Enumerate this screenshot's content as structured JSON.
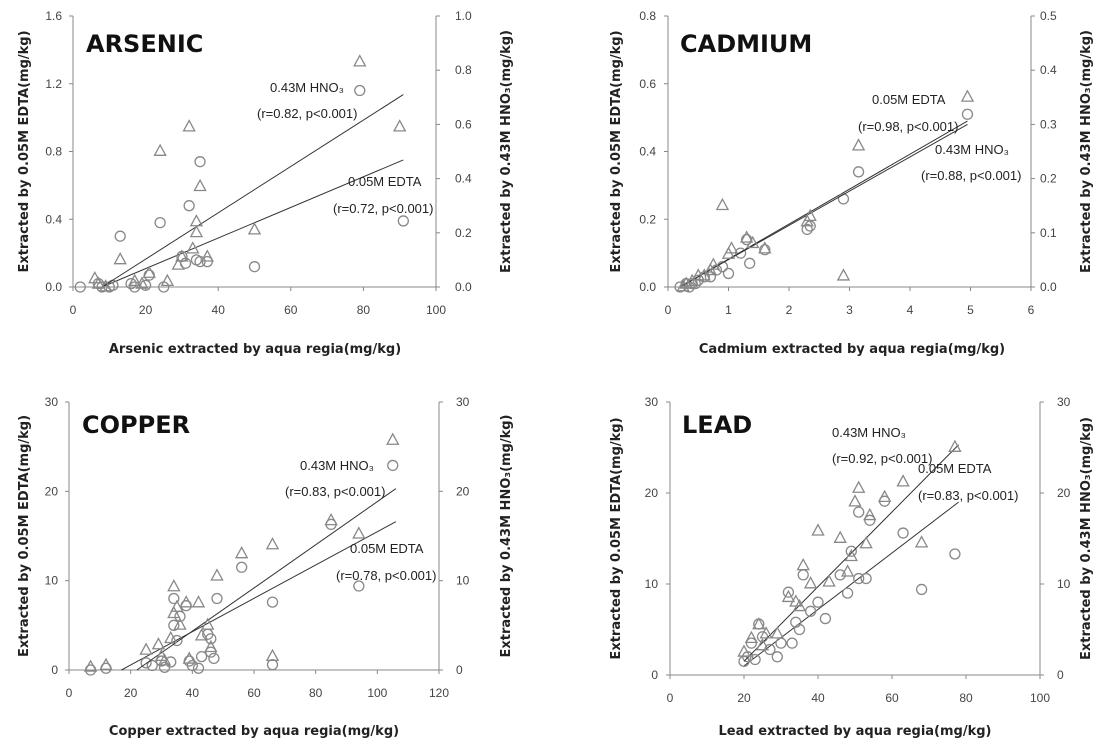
{
  "axis_labels": {
    "y_left": "Extracted by 0.05M EDTA(mg/kg)",
    "y_right": "Extracted by 0.43M HNO₃(mg/kg)"
  },
  "legend_markers": {
    "circle": "0.05M EDTA",
    "triangle": "0.43M HNO₃"
  },
  "colors": {
    "marker": "#888888",
    "line": "#333333",
    "axis": "#888888"
  },
  "chart_data": [
    {
      "type": "scatter",
      "title": "ARSENIC",
      "xlabel": "Arsenic extracted by aqua regia(mg/kg)",
      "xlim": [
        0,
        100
      ],
      "xticks": [
        0,
        20,
        40,
        60,
        80,
        100
      ],
      "ylim_left": [
        0,
        1.6
      ],
      "yticks_left": [
        "0.0",
        "0.4",
        "0.8",
        "1.2",
        "1.6"
      ],
      "ylim_right": [
        0,
        1.0
      ],
      "yticks_right": [
        "0.0",
        "0.2",
        "0.4",
        "0.6",
        "0.8",
        "1.0"
      ],
      "series": [
        {
          "name": "0.05M EDTA",
          "marker": "circle",
          "axis": "left",
          "points": [
            [
              2,
              0.0
            ],
            [
              7,
              0.02
            ],
            [
              8,
              0.0
            ],
            [
              10,
              0.0
            ],
            [
              11,
              0.01
            ],
            [
              13,
              0.3
            ],
            [
              16,
              0.02
            ],
            [
              17,
              0.0
            ],
            [
              20,
              0.01
            ],
            [
              21,
              0.07
            ],
            [
              24,
              0.38
            ],
            [
              25,
              0.0
            ],
            [
              30,
              0.18
            ],
            [
              31,
              0.14
            ],
            [
              32,
              0.48
            ],
            [
              34,
              0.16
            ],
            [
              35,
              0.74
            ],
            [
              35,
              0.15
            ],
            [
              37,
              0.15
            ],
            [
              50,
              0.12
            ],
            [
              79,
              1.16
            ],
            [
              91,
              0.39
            ]
          ],
          "fit": {
            "x": [
              8,
              91
            ],
            "y": [
              0.0,
              0.75
            ]
          }
        },
        {
          "name": "0.43M HNO₃",
          "marker": "triangle",
          "axis": "right",
          "points": [
            [
              6,
              0.03
            ],
            [
              7,
              0.01
            ],
            [
              9,
              0.0
            ],
            [
              13,
              0.1
            ],
            [
              17,
              0.02
            ],
            [
              19,
              0.01
            ],
            [
              21,
              0.05
            ],
            [
              24,
              0.5
            ],
            [
              26,
              0.02
            ],
            [
              29,
              0.08
            ],
            [
              30,
              0.11
            ],
            [
              32,
              0.59
            ],
            [
              33,
              0.14
            ],
            [
              34,
              0.24
            ],
            [
              34,
              0.2
            ],
            [
              35,
              0.37
            ],
            [
              37,
              0.11
            ],
            [
              50,
              0.21
            ],
            [
              79,
              0.83
            ],
            [
              90,
              0.59
            ]
          ],
          "fit": {
            "x": [
              8,
              91
            ],
            "y": [
              0.0,
              0.71
            ]
          }
        }
      ],
      "annotations": [
        {
          "text": "0.43M HNO₃",
          "anchor": "start"
        },
        {
          "text": "(r=0.82, p<0.001)",
          "anchor": "start"
        },
        {
          "text": "0.05M EDTA",
          "anchor": "start"
        },
        {
          "text": "(r=0.72, p<0.001)",
          "anchor": "start"
        }
      ]
    },
    {
      "type": "scatter",
      "title": "CADMIUM",
      "xlabel": "Cadmium extracted by aqua regia(mg/kg)",
      "xlim": [
        0,
        6
      ],
      "xticks": [
        0,
        1,
        2,
        3,
        4,
        5,
        6
      ],
      "ylim_left": [
        0,
        0.8
      ],
      "yticks_left": [
        "0.0",
        "0.2",
        "0.4",
        "0.6",
        "0.8"
      ],
      "ylim_right": [
        0,
        0.5
      ],
      "yticks_right": [
        "0.0",
        "0.1",
        "0.2",
        "0.3",
        "0.4",
        "0.5"
      ],
      "series": [
        {
          "name": "0.05M EDTA",
          "marker": "circle",
          "axis": "left",
          "points": [
            [
              0.2,
              0.0
            ],
            [
              0.3,
              0.01
            ],
            [
              0.35,
              0.0
            ],
            [
              0.4,
              0.01
            ],
            [
              0.45,
              0.01
            ],
            [
              0.5,
              0.02
            ],
            [
              0.6,
              0.03
            ],
            [
              0.7,
              0.03
            ],
            [
              0.8,
              0.05
            ],
            [
              0.9,
              0.06
            ],
            [
              1.0,
              0.04
            ],
            [
              1.2,
              0.1
            ],
            [
              1.3,
              0.14
            ],
            [
              1.35,
              0.07
            ],
            [
              1.6,
              0.11
            ],
            [
              2.3,
              0.17
            ],
            [
              2.35,
              0.18
            ],
            [
              2.9,
              0.26
            ],
            [
              3.15,
              0.34
            ],
            [
              4.95,
              0.51
            ]
          ],
          "fit": {
            "x": [
              0.2,
              4.95
            ],
            "y": [
              0.0,
              0.49
            ]
          }
        },
        {
          "name": "0.43M HNO₃",
          "marker": "triangle",
          "axis": "right",
          "points": [
            [
              0.25,
              0.0
            ],
            [
              0.3,
              0.005
            ],
            [
              0.4,
              0.01
            ],
            [
              0.5,
              0.02
            ],
            [
              0.6,
              0.02
            ],
            [
              0.7,
              0.03
            ],
            [
              0.75,
              0.04
            ],
            [
              0.9,
              0.15
            ],
            [
              1.0,
              0.06
            ],
            [
              1.05,
              0.07
            ],
            [
              1.3,
              0.09
            ],
            [
              1.4,
              0.08
            ],
            [
              1.6,
              0.07
            ],
            [
              2.3,
              0.12
            ],
            [
              2.35,
              0.13
            ],
            [
              2.9,
              0.02
            ],
            [
              3.15,
              0.26
            ],
            [
              4.95,
              0.35
            ]
          ],
          "fit": {
            "x": [
              0.2,
              4.95
            ],
            "y": [
              0.0,
              0.3
            ]
          }
        }
      ],
      "annotations": [
        {
          "text": "0.05M EDTA",
          "anchor": "start"
        },
        {
          "text": "(r=0.98, p<0.001)",
          "anchor": "start"
        },
        {
          "text": "0.43M HNO₃",
          "anchor": "start"
        },
        {
          "text": "(r=0.88, p<0.001)",
          "anchor": "start"
        }
      ]
    },
    {
      "type": "scatter",
      "title": "COPPER",
      "xlabel": "Copper extracted by aqua regia(mg/kg)",
      "xlim": [
        0,
        120
      ],
      "xticks": [
        0,
        20,
        40,
        60,
        80,
        100,
        120
      ],
      "ylim_left": [
        0,
        30
      ],
      "yticks_left": [
        "0",
        "10",
        "20",
        "30"
      ],
      "ylim_right": [
        0,
        30
      ],
      "yticks_right": [
        "0",
        "10",
        "20",
        "30"
      ],
      "series": [
        {
          "name": "0.05M EDTA",
          "marker": "circle",
          "axis": "left",
          "points": [
            [
              7,
              0.0
            ],
            [
              12,
              0.2
            ],
            [
              25,
              0.8
            ],
            [
              27,
              0.5
            ],
            [
              30,
              1.0
            ],
            [
              31,
              0.3
            ],
            [
              33,
              0.9
            ],
            [
              34,
              8.0
            ],
            [
              34,
              5.0
            ],
            [
              35,
              3.3
            ],
            [
              36,
              6.0
            ],
            [
              38,
              7.2
            ],
            [
              39,
              1.0
            ],
            [
              40,
              0.5
            ],
            [
              42,
              0.2
            ],
            [
              43,
              1.5
            ],
            [
              45,
              4.0
            ],
            [
              46,
              3.5
            ],
            [
              46,
              2.0
            ],
            [
              47,
              1.3
            ],
            [
              48,
              8.0
            ],
            [
              56,
              11.5
            ],
            [
              66,
              7.6
            ],
            [
              66,
              0.6
            ],
            [
              85,
              16.3
            ],
            [
              94,
              9.4
            ],
            [
              105,
              22.9
            ]
          ],
          "fit": {
            "x": [
              17,
              106
            ],
            "y": [
              0.0,
              16.6
            ]
          }
        },
        {
          "name": "0.43M HNO₃",
          "marker": "triangle",
          "axis": "right",
          "points": [
            [
              7,
              0.3
            ],
            [
              12,
              0.5
            ],
            [
              25,
              2.2
            ],
            [
              29,
              2.8
            ],
            [
              30,
              1.5
            ],
            [
              31,
              1.0
            ],
            [
              33,
              3.5
            ],
            [
              34,
              9.3
            ],
            [
              34,
              6.3
            ],
            [
              35,
              7.0
            ],
            [
              36,
              5.0
            ],
            [
              38,
              7.5
            ],
            [
              39,
              1.2
            ],
            [
              42,
              7.5
            ],
            [
              43,
              3.8
            ],
            [
              45,
              5.0
            ],
            [
              46,
              2.5
            ],
            [
              48,
              10.5
            ],
            [
              56,
              13.0
            ],
            [
              66,
              14.0
            ],
            [
              66,
              1.5
            ],
            [
              85,
              16.7
            ],
            [
              94,
              15.2
            ],
            [
              105,
              25.7
            ]
          ],
          "fit": {
            "x": [
              22,
              106
            ],
            "y": [
              0.0,
              20.3
            ]
          }
        }
      ],
      "annotations": [
        {
          "text": "0.43M HNO₃",
          "anchor": "start"
        },
        {
          "text": "(r=0.83, p<0.001)",
          "anchor": "start"
        },
        {
          "text": "0.05M EDTA",
          "anchor": "start"
        },
        {
          "text": "(r=0.78, p<0.001)",
          "anchor": "start"
        }
      ]
    },
    {
      "type": "scatter",
      "title": "LEAD",
      "xlabel": "Lead extracted by aqua regia(mg/kg)",
      "xlim": [
        0,
        100
      ],
      "xticks": [
        0,
        20,
        40,
        60,
        80,
        100
      ],
      "ylim_left": [
        0,
        30
      ],
      "yticks_left": [
        "0",
        "10",
        "20",
        "30"
      ],
      "ylim_right": [
        0,
        30
      ],
      "yticks_right": [
        "0",
        "10",
        "20",
        "30"
      ],
      "series": [
        {
          "name": "0.05M EDTA",
          "marker": "circle",
          "axis": "left",
          "points": [
            [
              20,
              1.5
            ],
            [
              21,
              2.0
            ],
            [
              22,
              3.5
            ],
            [
              23,
              1.7
            ],
            [
              24,
              5.6
            ],
            [
              25,
              4.2
            ],
            [
              27,
              2.8
            ],
            [
              29,
              2.0
            ],
            [
              30,
              3.5
            ],
            [
              32,
              9.1
            ],
            [
              33,
              3.5
            ],
            [
              34,
              5.8
            ],
            [
              35,
              5.0
            ],
            [
              36,
              11.0
            ],
            [
              38,
              7.0
            ],
            [
              40,
              8.0
            ],
            [
              42,
              6.2
            ],
            [
              46,
              11.0
            ],
            [
              48,
              9.0
            ],
            [
              49,
              13.6
            ],
            [
              51,
              10.6
            ],
            [
              51,
              17.9
            ],
            [
              53,
              10.6
            ],
            [
              54,
              17.0
            ],
            [
              58,
              19.1
            ],
            [
              63,
              15.6
            ],
            [
              68,
              9.4
            ],
            [
              77,
              13.3
            ]
          ],
          "fit": {
            "x": [
              20,
              78
            ],
            "y": [
              1.0,
              19.0
            ]
          }
        },
        {
          "name": "0.43M HNO₃",
          "marker": "triangle",
          "axis": "right",
          "points": [
            [
              20,
              2.5
            ],
            [
              22,
              4.0
            ],
            [
              24,
              5.5
            ],
            [
              25,
              3.2
            ],
            [
              26,
              4.5
            ],
            [
              29,
              4.5
            ],
            [
              32,
              8.5
            ],
            [
              34,
              8.0
            ],
            [
              35,
              7.5
            ],
            [
              36,
              12.0
            ],
            [
              38,
              10.0
            ],
            [
              40,
              15.8
            ],
            [
              43,
              10.2
            ],
            [
              46,
              15.0
            ],
            [
              48,
              11.3
            ],
            [
              49,
              13.0
            ],
            [
              50,
              19.0
            ],
            [
              51,
              20.5
            ],
            [
              53,
              14.4
            ],
            [
              54,
              17.5
            ],
            [
              58,
              19.5
            ],
            [
              63,
              21.2
            ],
            [
              68,
              14.5
            ],
            [
              77,
              25.0
            ]
          ],
          "fit": {
            "x": [
              20,
              78
            ],
            "y": [
              1.5,
              25.3
            ]
          }
        }
      ],
      "annotations": [
        {
          "text": "0.43M HNO₃",
          "anchor": "start"
        },
        {
          "text": "(r=0.92, p<0.001)",
          "anchor": "start"
        },
        {
          "text": "0.05M EDTA",
          "anchor": "start"
        },
        {
          "text": "(r=0.83, p<0.001)",
          "anchor": "start"
        }
      ]
    }
  ]
}
